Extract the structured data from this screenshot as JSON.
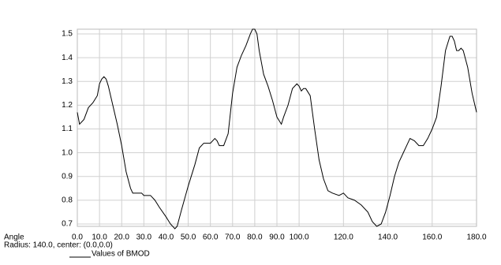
{
  "chart_data": {
    "type": "line",
    "xlabel": "Angle",
    "subtitle": "Radius: 140.0, center: (0.0,0.0)",
    "x": [
      0,
      1,
      3,
      5,
      7,
      9,
      10,
      11,
      12,
      13,
      14,
      16,
      18,
      20,
      22,
      24,
      25,
      27,
      29,
      30,
      33,
      35,
      37,
      40,
      42,
      44,
      45,
      47,
      50,
      53,
      55,
      57,
      60,
      62,
      63,
      64,
      66,
      68,
      70,
      72,
      74,
      76,
      78,
      79,
      80,
      81,
      82,
      84,
      86,
      88,
      90,
      92,
      93,
      95,
      97,
      99,
      100,
      101,
      102,
      103,
      105,
      107,
      109,
      111,
      113,
      115,
      118,
      120,
      122,
      125,
      128,
      131,
      133,
      135,
      137,
      139,
      141,
      143,
      145,
      147,
      149,
      150,
      152,
      154,
      156,
      158,
      160,
      162,
      164,
      166,
      168,
      169,
      170,
      171,
      172,
      173,
      174,
      176,
      178,
      180
    ],
    "series": [
      {
        "name": "Values of BMOD",
        "color": "#000000",
        "values": [
          1.17,
          1.12,
          1.14,
          1.19,
          1.21,
          1.24,
          1.29,
          1.31,
          1.32,
          1.31,
          1.28,
          1.2,
          1.12,
          1.03,
          0.92,
          0.85,
          0.83,
          0.83,
          0.83,
          0.82,
          0.82,
          0.8,
          0.77,
          0.73,
          0.7,
          0.68,
          0.69,
          0.76,
          0.86,
          0.95,
          1.02,
          1.04,
          1.04,
          1.06,
          1.05,
          1.03,
          1.03,
          1.08,
          1.25,
          1.36,
          1.41,
          1.45,
          1.5,
          1.52,
          1.52,
          1.5,
          1.43,
          1.33,
          1.28,
          1.22,
          1.15,
          1.12,
          1.15,
          1.2,
          1.27,
          1.29,
          1.28,
          1.26,
          1.27,
          1.27,
          1.24,
          1.1,
          0.97,
          0.89,
          0.84,
          0.83,
          0.82,
          0.83,
          0.81,
          0.8,
          0.78,
          0.75,
          0.71,
          0.69,
          0.7,
          0.75,
          0.82,
          0.9,
          0.96,
          1.0,
          1.04,
          1.06,
          1.05,
          1.03,
          1.03,
          1.06,
          1.1,
          1.15,
          1.28,
          1.43,
          1.49,
          1.49,
          1.47,
          1.43,
          1.43,
          1.44,
          1.43,
          1.36,
          1.25,
          1.17
        ]
      }
    ],
    "xlim": [
      0,
      180
    ],
    "xticks": [
      {
        "value": 0,
        "label": "0.0"
      },
      {
        "value": 10,
        "label": "10.0"
      },
      {
        "value": 20,
        "label": "20.0"
      },
      {
        "value": 30,
        "label": "30.0"
      },
      {
        "value": 40,
        "label": "40.0"
      },
      {
        "value": 50,
        "label": "50.0"
      },
      {
        "value": 60,
        "label": "60.0"
      },
      {
        "value": 70,
        "label": "70.0"
      },
      {
        "value": 80,
        "label": "80.0"
      },
      {
        "value": 90,
        "label": "90.0"
      },
      {
        "value": 100,
        "label": "100.0"
      },
      {
        "value": 120,
        "label": "120.0"
      },
      {
        "value": 140,
        "label": "140.0"
      },
      {
        "value": 160,
        "label": "160.0"
      },
      {
        "value": 180,
        "label": "180.0"
      }
    ],
    "ylim": [
      0.69,
      1.52
    ],
    "yticks": [
      0.7,
      0.8,
      0.9,
      {
        "value": 1,
        "label": "1.0"
      },
      1.1,
      1.2,
      1.3,
      1.4,
      1.5
    ],
    "grid": true
  }
}
